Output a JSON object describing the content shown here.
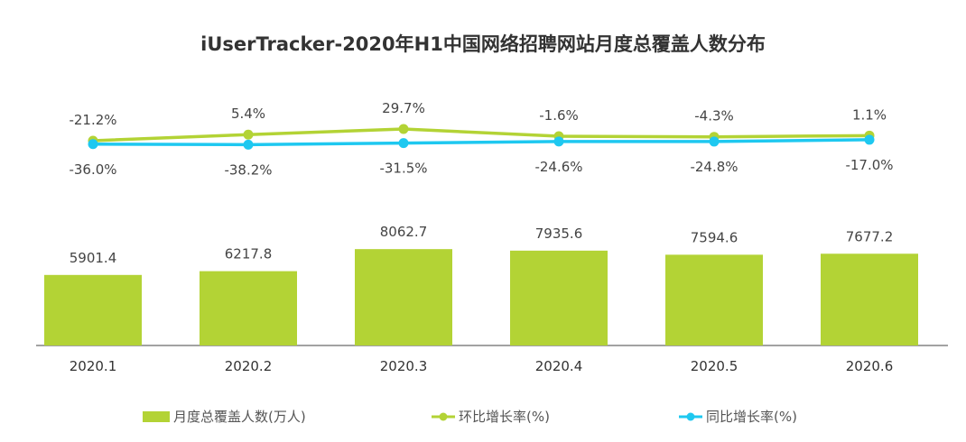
{
  "chart_data": {
    "type": "bar",
    "title": "iUserTracker-2020年H1中国网络招聘网站月度总覆盖人数分布",
    "categories": [
      "2020.1",
      "2020.2",
      "2020.3",
      "2020.4",
      "2020.5",
      "2020.6"
    ],
    "series": [
      {
        "name": "月度总覆盖人数(万人)",
        "type": "bar",
        "color": "#b3d335",
        "values": [
          5901.4,
          6217.8,
          8062.7,
          7935.6,
          7594.6,
          7677.2
        ],
        "labels": [
          "5901.4",
          "6217.8",
          "8062.7",
          "7935.6",
          "7594.6",
          "7677.2"
        ]
      },
      {
        "name": "环比增长率(%)",
        "type": "line",
        "color": "#b3d335",
        "values": [
          -21.2,
          5.4,
          29.7,
          -1.6,
          -4.3,
          1.1
        ],
        "labels": [
          "-21.2%",
          "5.4%",
          "29.7%",
          "-1.6%",
          "-4.3%",
          "1.1%"
        ]
      },
      {
        "name": "同比增长率(%)",
        "type": "line",
        "color": "#1ec8f0",
        "values": [
          -36.0,
          -38.2,
          -31.5,
          -24.6,
          -24.8,
          -17.0
        ],
        "labels": [
          "-36.0%",
          "-38.2%",
          "-31.5%",
          "-24.6%",
          "-24.8%",
          "-17.0%"
        ]
      }
    ],
    "grid": false,
    "legend": "bottom"
  }
}
